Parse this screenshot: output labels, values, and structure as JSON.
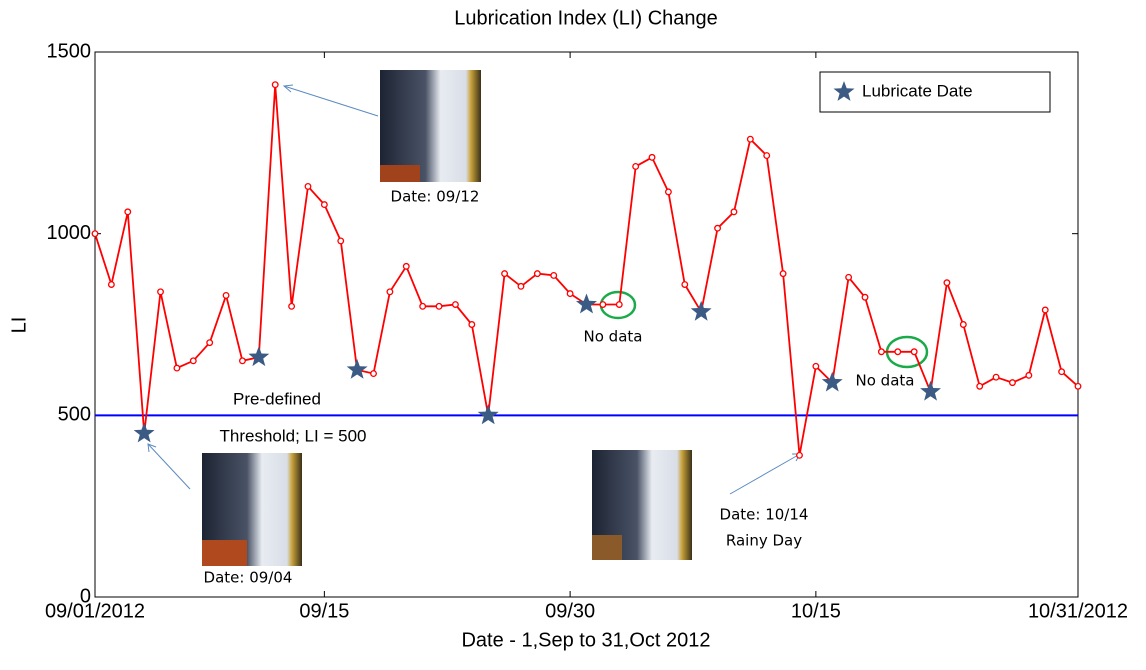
{
  "chart_data": {
    "type": "line",
    "title": "Lubrication Index (LI) Change",
    "xlabel": "Date - 1,Sep to 31,Oct 2012",
    "ylabel": "LI",
    "xlim": [
      "2012-09-01",
      "2012-10-31"
    ],
    "xticks": [
      {
        "value": "2012-09-01",
        "label": "09/01/2012"
      },
      {
        "value": "2012-09-15",
        "label": "09/15"
      },
      {
        "value": "2012-09-30",
        "label": "09/30"
      },
      {
        "value": "2012-10-15",
        "label": "10/15"
      },
      {
        "value": "2012-10-31",
        "label": "10/31/2012"
      }
    ],
    "ylim": [
      0,
      1500
    ],
    "yticks": [
      0,
      500,
      1000,
      1500
    ],
    "grid": false,
    "legend": "upper right",
    "series": [
      {
        "color": "#ff0000",
        "marker": "circle",
        "x": [
          "2012-09-01",
          "2012-09-02",
          "2012-09-03",
          "2012-09-04",
          "2012-09-05",
          "2012-09-06",
          "2012-09-07",
          "2012-09-08",
          "2012-09-09",
          "2012-09-10",
          "2012-09-11",
          "2012-09-12",
          "2012-09-13",
          "2012-09-14",
          "2012-09-15",
          "2012-09-16",
          "2012-09-17",
          "2012-09-18",
          "2012-09-19",
          "2012-09-20",
          "2012-09-21",
          "2012-09-22",
          "2012-09-23",
          "2012-09-24",
          "2012-09-25",
          "2012-09-26",
          "2012-09-27",
          "2012-09-28",
          "2012-09-29",
          "2012-09-30",
          "2012-10-01",
          "2012-10-02",
          "2012-10-03",
          "2012-10-04",
          "2012-10-05",
          "2012-10-06",
          "2012-10-07",
          "2012-10-08",
          "2012-10-09",
          "2012-10-10",
          "2012-10-11",
          "2012-10-12",
          "2012-10-13",
          "2012-10-14",
          "2012-10-15",
          "2012-10-16",
          "2012-10-17",
          "2012-10-18",
          "2012-10-19",
          "2012-10-20",
          "2012-10-21",
          "2012-10-22",
          "2012-10-23",
          "2012-10-24",
          "2012-10-25",
          "2012-10-26",
          "2012-10-27",
          "2012-10-28",
          "2012-10-29",
          "2012-10-30",
          "2012-10-31"
        ],
        "values": [
          1000,
          860,
          1060,
          450,
          840,
          630,
          650,
          700,
          830,
          650,
          660,
          1410,
          800,
          1130,
          1080,
          980,
          625,
          615,
          840,
          910,
          800,
          800,
          805,
          750,
          500,
          890,
          855,
          890,
          885,
          835,
          805,
          805,
          805,
          1185,
          1210,
          1115,
          860,
          785,
          1015,
          1060,
          1260,
          1215,
          890,
          390,
          635,
          590,
          880,
          825,
          675,
          675,
          675,
          565,
          865,
          750,
          580,
          605,
          590,
          610,
          790,
          620,
          580
        ]
      },
      {
        "name": "Lubricate Date",
        "color": "#3b5b84",
        "marker": "star",
        "x": [
          "2012-09-04",
          "2012-09-11",
          "2012-09-17",
          "2012-09-25",
          "2012-10-01",
          "2012-10-08",
          "2012-10-16",
          "2012-10-22"
        ],
        "values": [
          450,
          660,
          625,
          500,
          805,
          785,
          590,
          565
        ]
      }
    ],
    "threshold": {
      "value": 500,
      "color": "#0000ff"
    },
    "annotations": [
      "Pre-defined",
      "Threshold; LI = 500",
      "Date: 09/12",
      "Date: 09/04",
      "Date: 10/14",
      "Rainy Day",
      "No data",
      "No data"
    ]
  }
}
